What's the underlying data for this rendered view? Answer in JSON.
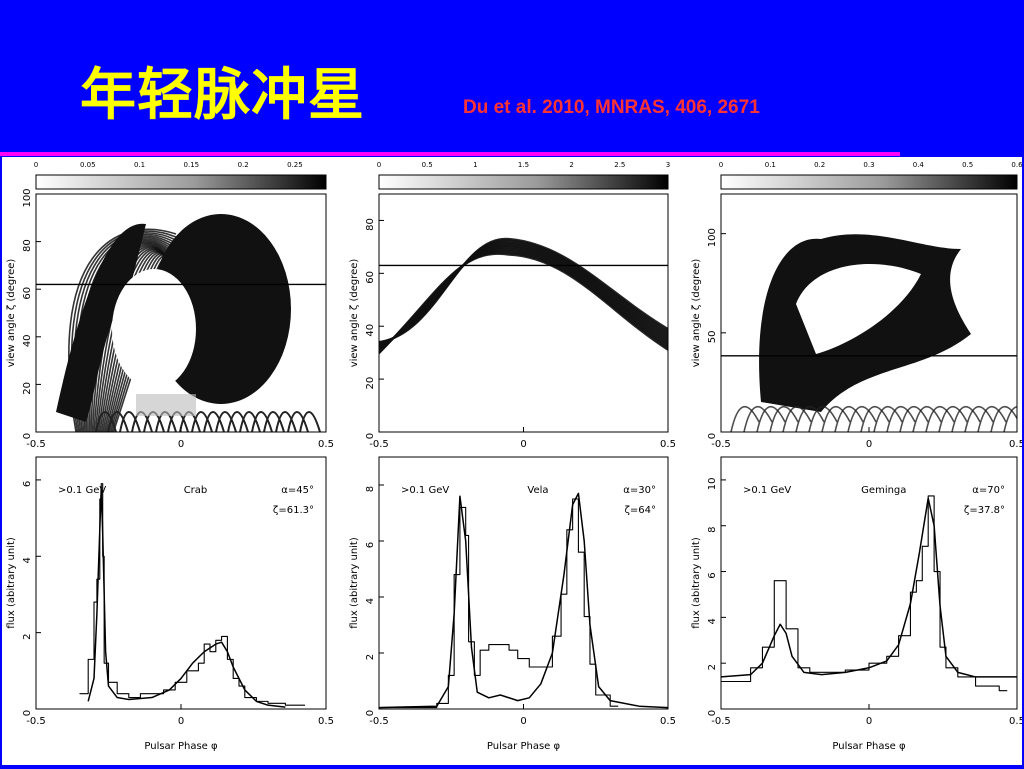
{
  "slide": {
    "title": "年轻脉冲星",
    "reference": "Du et al. 2010, MNRAS, 406, 2671",
    "colors": {
      "background": "#0000ff",
      "title": "#ffff00",
      "reference": "#ff3333",
      "rule": "#ff00ff"
    }
  },
  "figure": {
    "top_ylabel": "view angle ζ (degree)",
    "bottom_ylabel": "flux (abitrary unit)",
    "bottom_xlabel": "Pulsar Phase φ",
    "energy_label": ">0.1 GeV",
    "top_x_ticks": [
      "-0.5",
      "0",
      "0.5"
    ],
    "bottom_x_ticks": [
      "-0.5",
      "0",
      "0.5"
    ],
    "panels": [
      {
        "name": "Crab",
        "alpha": "α=45°",
        "zeta": "ζ=61.3°",
        "colorbar_ticks": [
          "0",
          "0.05",
          "0.1",
          "0.15",
          "0.2",
          "0.25"
        ],
        "top_y_ticks": [
          "0",
          "20",
          "40",
          "60",
          "80",
          "100"
        ],
        "bottom_y_ticks": [
          "0",
          "2",
          "4",
          "6"
        ]
      },
      {
        "name": "Vela",
        "alpha": "α=30°",
        "zeta": "ζ=64°",
        "colorbar_ticks": [
          "0",
          "0.5",
          "1",
          "1.5",
          "2",
          "2.5",
          "3"
        ],
        "top_y_ticks": [
          "0",
          "20",
          "40",
          "60",
          "80"
        ],
        "bottom_y_ticks": [
          "0",
          "2",
          "4",
          "6",
          "8"
        ]
      },
      {
        "name": "Geminga",
        "alpha": "α=70°",
        "zeta": "ζ=37.8°",
        "colorbar_ticks": [
          "0",
          "0.1",
          "0.2",
          "0.3",
          "0.4",
          "0.5",
          "0.6"
        ],
        "top_y_ticks": [
          "0",
          "50",
          "100"
        ],
        "bottom_y_ticks": [
          "0",
          "2",
          "4",
          "6",
          "8",
          "10"
        ]
      }
    ]
  },
  "chart_data": [
    {
      "type": "line",
      "panel": "Crab",
      "xlim": [
        -0.5,
        0.5
      ],
      "ylim": [
        0,
        6.6
      ],
      "series": [
        {
          "kind": "step",
          "x": [
            -0.35,
            -0.32,
            -0.3,
            -0.29,
            -0.28,
            -0.275,
            -0.27,
            -0.265,
            -0.25,
            -0.22,
            -0.18,
            -0.14,
            -0.1,
            -0.06,
            -0.02,
            0.02,
            0.06,
            0.08,
            0.1,
            0.12,
            0.14,
            0.16,
            0.18,
            0.2,
            0.22,
            0.26,
            0.3,
            0.36,
            0.4
          ],
          "y": [
            0.4,
            1.3,
            2.8,
            3.4,
            5.5,
            5.9,
            4.0,
            1.2,
            0.7,
            0.4,
            0.3,
            0.4,
            0.4,
            0.5,
            0.7,
            1.0,
            1.2,
            1.7,
            1.5,
            1.8,
            1.9,
            1.3,
            0.8,
            0.6,
            0.3,
            0.2,
            0.15,
            0.1,
            0.1
          ]
        },
        {
          "kind": "smooth",
          "x": [
            -0.32,
            -0.3,
            -0.29,
            -0.28,
            -0.275,
            -0.27,
            -0.26,
            -0.25,
            -0.22,
            -0.18,
            -0.1,
            -0.04,
            0.0,
            0.04,
            0.08,
            0.12,
            0.14,
            0.16,
            0.18,
            0.22,
            0.26,
            0.3,
            0.36
          ],
          "y": [
            0.2,
            0.8,
            2.5,
            4.7,
            5.8,
            4.6,
            1.5,
            0.6,
            0.3,
            0.25,
            0.3,
            0.5,
            0.8,
            1.2,
            1.5,
            1.7,
            1.75,
            1.5,
            1.1,
            0.5,
            0.2,
            0.1,
            0.05
          ]
        }
      ]
    },
    {
      "type": "line",
      "panel": "Vela",
      "xlim": [
        -0.5,
        0.5
      ],
      "ylim": [
        0,
        9.0
      ],
      "series": [
        {
          "kind": "step",
          "x": [
            -0.5,
            -0.3,
            -0.26,
            -0.24,
            -0.22,
            -0.2,
            -0.19,
            -0.17,
            -0.15,
            -0.12,
            -0.08,
            -0.05,
            -0.02,
            0.02,
            0.06,
            0.1,
            0.13,
            0.15,
            0.17,
            0.19,
            0.21,
            0.23,
            0.25,
            0.3
          ],
          "y": [
            0.05,
            0.2,
            1.2,
            4.8,
            7.2,
            6.2,
            2.4,
            1.2,
            2.1,
            2.3,
            2.3,
            2.1,
            1.8,
            1.5,
            1.5,
            2.6,
            4.1,
            6.4,
            7.5,
            5.6,
            3.3,
            1.6,
            0.5,
            0.1
          ]
        },
        {
          "kind": "smooth",
          "x": [
            -0.5,
            -0.3,
            -0.26,
            -0.24,
            -0.22,
            -0.2,
            -0.18,
            -0.16,
            -0.12,
            -0.08,
            -0.02,
            0.02,
            0.06,
            0.1,
            0.14,
            0.17,
            0.19,
            0.21,
            0.23,
            0.26,
            0.3,
            0.4,
            0.5
          ],
          "y": [
            0.05,
            0.1,
            0.8,
            3.4,
            7.6,
            6.0,
            2.2,
            0.6,
            0.4,
            0.5,
            0.3,
            0.4,
            0.9,
            2.0,
            4.8,
            7.3,
            7.7,
            6.0,
            3.0,
            0.8,
            0.3,
            0.1,
            0.05
          ]
        }
      ]
    },
    {
      "type": "line",
      "panel": "Geminga",
      "xlim": [
        -0.5,
        0.5
      ],
      "ylim": [
        0,
        11.0
      ],
      "series": [
        {
          "kind": "step",
          "x": [
            -0.5,
            -0.4,
            -0.36,
            -0.32,
            -0.28,
            -0.24,
            -0.2,
            -0.14,
            -0.08,
            0.0,
            0.06,
            0.1,
            0.14,
            0.16,
            0.18,
            0.2,
            0.22,
            0.24,
            0.26,
            0.3,
            0.36,
            0.44
          ],
          "y": [
            1.2,
            1.8,
            2.7,
            5.6,
            3.5,
            1.8,
            1.6,
            1.6,
            1.7,
            2.0,
            2.3,
            3.2,
            5.1,
            5.6,
            7.1,
            9.3,
            6.0,
            2.7,
            1.8,
            1.4,
            1.0,
            0.8
          ]
        },
        {
          "kind": "smooth",
          "x": [
            -0.5,
            -0.4,
            -0.36,
            -0.32,
            -0.3,
            -0.28,
            -0.26,
            -0.22,
            -0.16,
            -0.08,
            0.0,
            0.06,
            0.1,
            0.14,
            0.17,
            0.2,
            0.22,
            0.24,
            0.26,
            0.3,
            0.36,
            0.5
          ],
          "y": [
            1.4,
            1.5,
            2.0,
            3.2,
            3.7,
            3.3,
            2.3,
            1.6,
            1.5,
            1.6,
            1.8,
            2.1,
            2.8,
            4.6,
            6.8,
            9.2,
            8.0,
            4.5,
            2.3,
            1.6,
            1.4,
            1.4
          ]
        }
      ]
    }
  ]
}
